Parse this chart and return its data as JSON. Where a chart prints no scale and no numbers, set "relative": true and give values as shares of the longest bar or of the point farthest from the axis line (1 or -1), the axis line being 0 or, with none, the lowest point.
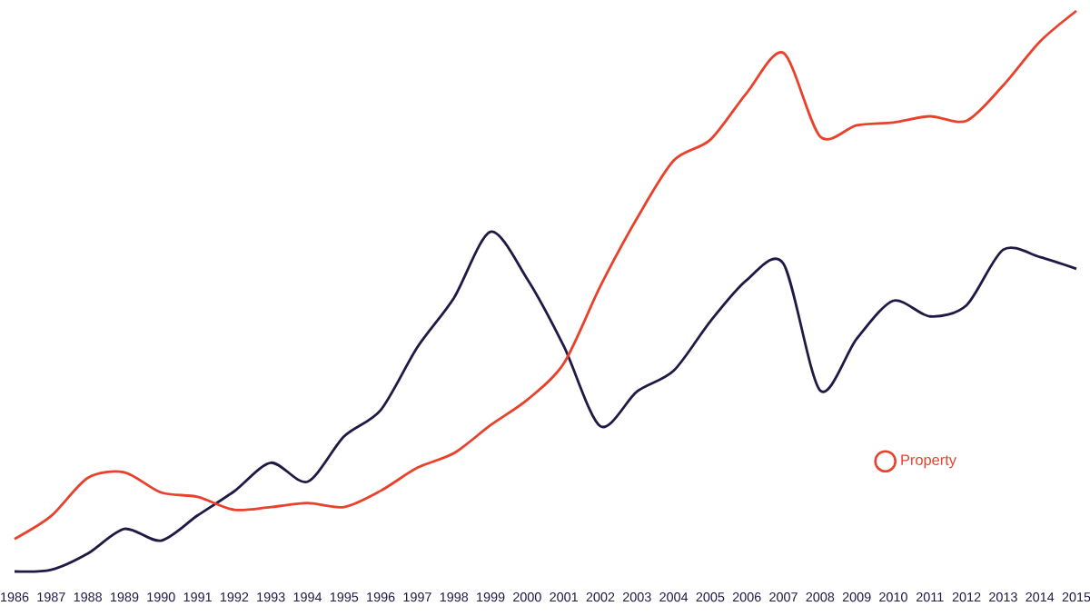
{
  "chart_data": {
    "type": "line",
    "relative": true,
    "legend": "bottom right",
    "marker": "none",
    "line_style": "solid",
    "grid": false,
    "categories": [
      "1986",
      "1987",
      "1988",
      "1989",
      "1990",
      "1991",
      "1992",
      "1993",
      "1994",
      "1995",
      "1996",
      "1997",
      "1998",
      "1999",
      "2000",
      "2001",
      "2002",
      "2003",
      "2004",
      "2005",
      "2006",
      "2007",
      "2008",
      "2009",
      "2010",
      "2011",
      "2012",
      "2013",
      "2014",
      "2015"
    ],
    "series": [
      {
        "color": "#1f1a45",
        "values": [
          0,
          0.003,
          0.032,
          0.076,
          0.055,
          0.1,
          0.143,
          0.194,
          0.16,
          0.241,
          0.288,
          0.4,
          0.488,
          0.606,
          0.522,
          0.402,
          0.259,
          0.321,
          0.358,
          0.446,
          0.52,
          0.549,
          0.323,
          0.415,
          0.483,
          0.455,
          0.475,
          0.574,
          0.561,
          0.54
        ]
      },
      {
        "name": "Property",
        "color": "#e8412c",
        "values": [
          0.058,
          0.099,
          0.167,
          0.177,
          0.141,
          0.133,
          0.11,
          0.115,
          0.122,
          0.115,
          0.144,
          0.185,
          0.211,
          0.261,
          0.306,
          0.371,
          0.509,
          0.63,
          0.733,
          0.77,
          0.854,
          0.925,
          0.776,
          0.796,
          0.801,
          0.812,
          0.804,
          0.867,
          0.945,
          1
        ]
      }
    ]
  }
}
